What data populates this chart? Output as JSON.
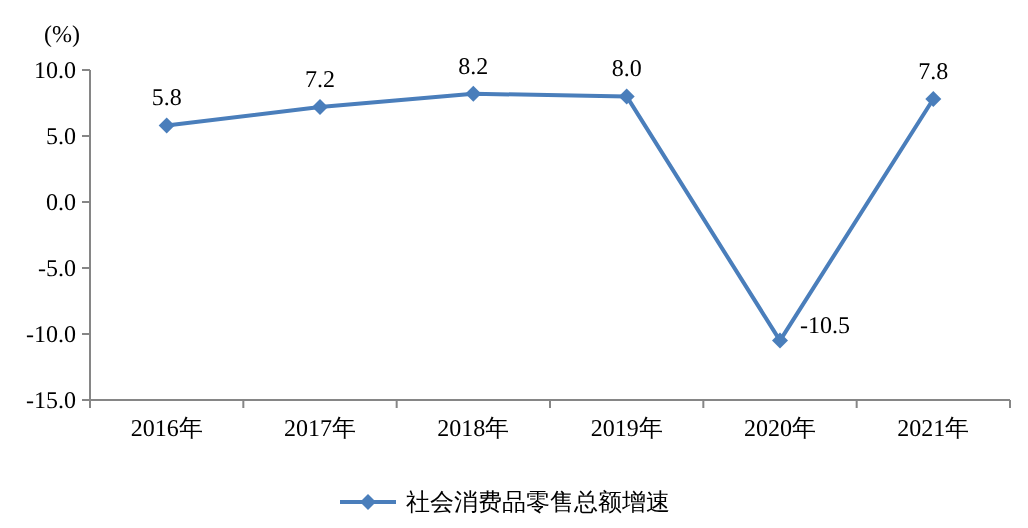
{
  "chart_data": {
    "type": "line",
    "ylabel": "(%)",
    "categories": [
      "2016年",
      "2017年",
      "2018年",
      "2019年",
      "2020年",
      "2021年"
    ],
    "series": [
      {
        "name": "社会消费品零售总额增速",
        "color": "#4a7ebb",
        "values": [
          5.8,
          7.2,
          8.2,
          8.0,
          -10.5,
          7.8
        ],
        "value_labels": [
          "5.8",
          "7.2",
          "8.2",
          "8.0",
          "-10.5",
          "7.8"
        ]
      }
    ],
    "ylim": [
      -15,
      10
    ],
    "yticks": [
      {
        "value": -15,
        "label": "-15.0"
      },
      {
        "value": -10,
        "label": "-10.0"
      },
      {
        "value": -5,
        "label": "-5.0"
      },
      {
        "value": 0,
        "label": "0.0"
      },
      {
        "value": 5,
        "label": "5.0"
      },
      {
        "value": 10,
        "label": "10.0"
      }
    ],
    "legend": "bottom",
    "marker": "diamond",
    "line_style": "solid"
  }
}
